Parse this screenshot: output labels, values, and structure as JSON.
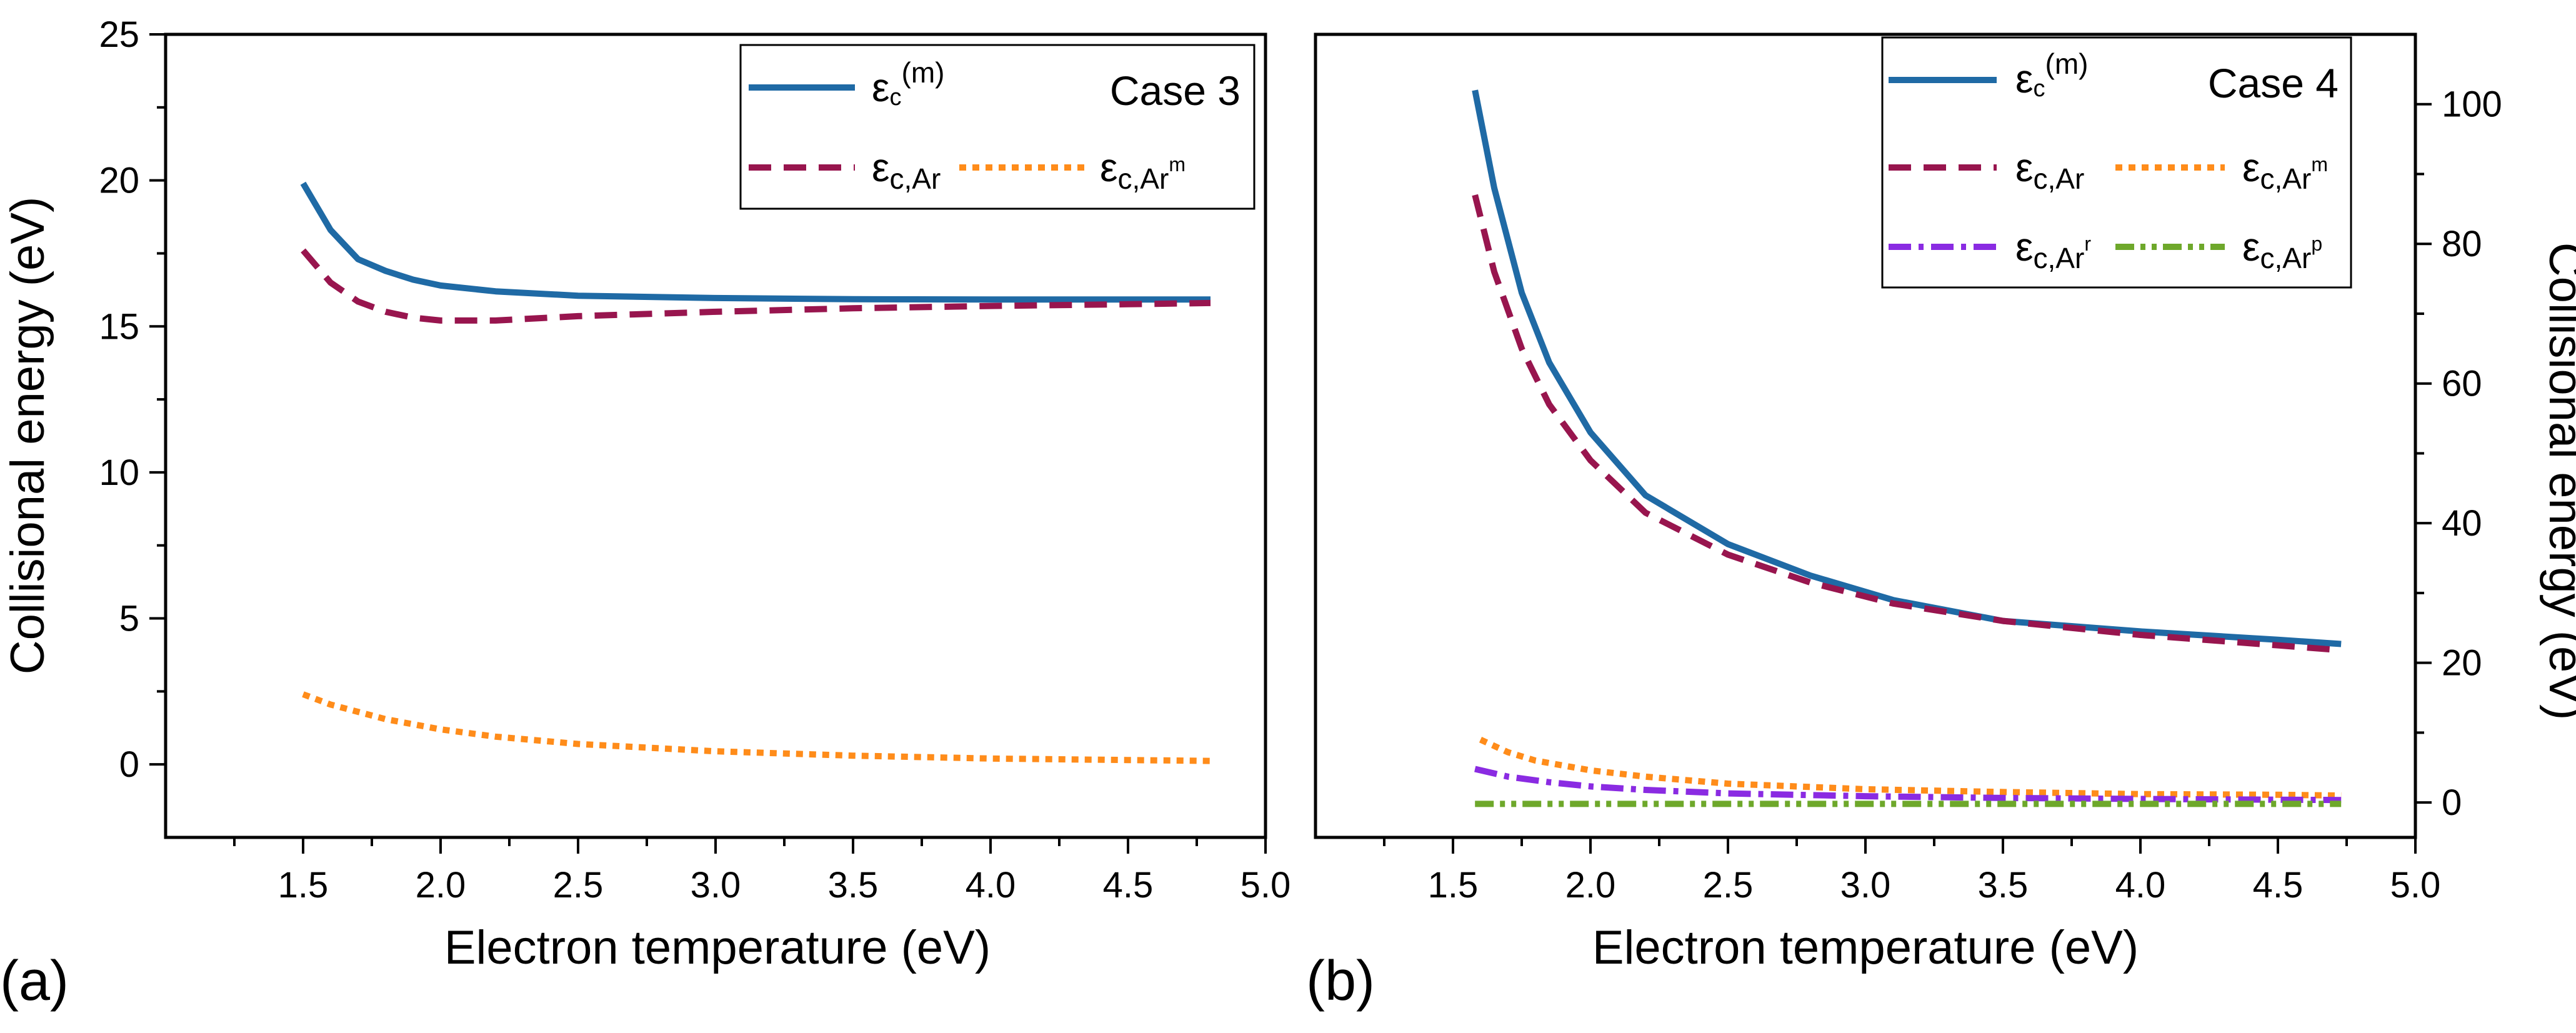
{
  "colors": {
    "blue": "#1f6aa5",
    "crimson": "#98154e",
    "orange": "#ff8c1a",
    "violet": "#8a2be2",
    "green": "#6ea82b"
  },
  "chart_data": [
    {
      "type": "line",
      "panel_label": "(a)",
      "case_label": "Case 3",
      "xlabel": "Electron temperature (eV)",
      "ylabel": "Collisional energy (eV)",
      "y_axis_side": "left",
      "xlim": [
        1.0,
        5.0
      ],
      "ylim": [
        -2.5,
        25
      ],
      "xticks": [
        1.5,
        2.0,
        2.5,
        3.0,
        3.5,
        4.0,
        4.5,
        5.0
      ],
      "xtick_labels": [
        "1.5",
        "2.0",
        "2.5",
        "3.0",
        "3.5",
        "4.0",
        "4.5",
        "5.0"
      ],
      "yticks": [
        0,
        5,
        10,
        15,
        20,
        25
      ],
      "ytick_labels": [
        "0",
        "5",
        "10",
        "15",
        "20",
        "25"
      ],
      "legend_position": "top-right",
      "series": [
        {
          "key": "eps_m",
          "name": "εc(m)",
          "label_main": "ε",
          "label_sub": "c",
          "label_sup": "(m)",
          "dash": "solid",
          "color_key": "blue",
          "x": [
            1.5,
            1.6,
            1.7,
            1.8,
            1.9,
            2.0,
            2.2,
            2.5,
            3.0,
            3.5,
            4.0,
            4.5,
            4.8
          ],
          "y": [
            19.9,
            18.3,
            17.3,
            16.9,
            16.6,
            16.4,
            16.2,
            16.05,
            15.97,
            15.93,
            15.92,
            15.92,
            15.92
          ]
        },
        {
          "key": "eps_ar",
          "name": "εc,Ar",
          "label_main": "ε",
          "label_sub": "c,Ar",
          "label_sup": "",
          "dash": "dash",
          "color_key": "crimson",
          "x": [
            1.5,
            1.6,
            1.7,
            1.8,
            1.9,
            2.0,
            2.2,
            2.5,
            3.0,
            3.5,
            4.0,
            4.5,
            4.8
          ],
          "y": [
            17.6,
            16.5,
            15.85,
            15.5,
            15.3,
            15.2,
            15.2,
            15.35,
            15.5,
            15.62,
            15.7,
            15.76,
            15.8
          ]
        },
        {
          "key": "eps_arm",
          "name": "εc,Arm",
          "label_main": "ε",
          "label_sub": "c,Ar",
          "label_sup": "m",
          "dash": "dot",
          "color_key": "orange",
          "x": [
            1.5,
            1.6,
            1.8,
            2.0,
            2.2,
            2.5,
            3.0,
            3.5,
            4.0,
            4.5,
            4.8
          ],
          "y": [
            2.4,
            2.05,
            1.55,
            1.2,
            0.95,
            0.7,
            0.45,
            0.3,
            0.2,
            0.15,
            0.12
          ]
        }
      ]
    },
    {
      "type": "line",
      "panel_label": "(b)",
      "case_label": "Case 4",
      "xlabel": "Electron temperature (eV)",
      "ylabel": "Collisional energy (eV)",
      "y_axis_side": "right",
      "xlim": [
        1.0,
        5.0
      ],
      "ylim": [
        -5,
        110
      ],
      "xticks": [
        1.5,
        2.0,
        2.5,
        3.0,
        3.5,
        4.0,
        4.5,
        5.0
      ],
      "xtick_labels": [
        "1.5",
        "2.0",
        "2.5",
        "3.0",
        "3.5",
        "4.0",
        "4.5",
        "5.0"
      ],
      "yticks": [
        0,
        20,
        40,
        60,
        80,
        100
      ],
      "ytick_labels": [
        "0",
        "20",
        "40",
        "60",
        "80",
        "100"
      ],
      "legend_position": "top-right",
      "series": [
        {
          "key": "eps_m",
          "name": "εc(m)",
          "label_main": "ε",
          "label_sub": "c",
          "label_sup": "(m)",
          "dash": "solid",
          "color_key": "blue",
          "x": [
            1.58,
            1.65,
            1.75,
            1.85,
            2.0,
            2.2,
            2.5,
            2.8,
            3.1,
            3.5,
            4.0,
            4.5,
            4.73
          ],
          "y": [
            102,
            88,
            73,
            63,
            53,
            44,
            37,
            32.5,
            29,
            26,
            24.5,
            23.3,
            22.7
          ]
        },
        {
          "key": "eps_ar",
          "name": "εc,Ar",
          "label_main": "ε",
          "label_sub": "c,Ar",
          "label_sup": "",
          "dash": "dash",
          "color_key": "crimson",
          "x": [
            1.58,
            1.65,
            1.75,
            1.85,
            2.0,
            2.2,
            2.5,
            2.8,
            3.1,
            3.5,
            4.0,
            4.5,
            4.73
          ],
          "y": [
            87,
            76,
            65,
            57,
            49,
            41.5,
            35.5,
            31.5,
            28.5,
            26,
            24,
            22.5,
            21.8
          ]
        },
        {
          "key": "eps_arm",
          "name": "εc,Arm",
          "label_main": "ε",
          "label_sub": "c,Ar",
          "label_sup": "m",
          "dash": "dot",
          "color_key": "orange",
          "x": [
            1.6,
            1.7,
            1.8,
            2.0,
            2.2,
            2.5,
            3.0,
            3.5,
            4.0,
            4.5,
            4.73
          ],
          "y": [
            9.0,
            7.2,
            6.0,
            4.6,
            3.7,
            2.7,
            1.9,
            1.5,
            1.2,
            1.1,
            1.0
          ]
        },
        {
          "key": "eps_arr",
          "name": "εc,Arr",
          "label_main": "ε",
          "label_sub": "c,Ar",
          "label_sup": "r",
          "dash": "dashdot",
          "color_key": "violet",
          "x": [
            1.58,
            1.7,
            1.85,
            2.0,
            2.2,
            2.5,
            3.0,
            3.5,
            4.0,
            4.5,
            4.73
          ],
          "y": [
            4.8,
            3.7,
            2.9,
            2.3,
            1.8,
            1.3,
            0.9,
            0.65,
            0.5,
            0.4,
            0.35
          ]
        },
        {
          "key": "eps_arp",
          "name": "εc,Arp",
          "label_main": "ε",
          "label_sub": "c,Ar",
          "label_sup": "p",
          "dash": "dashdotdot",
          "color_key": "green",
          "x": [
            1.58,
            2.0,
            2.5,
            3.0,
            3.5,
            4.0,
            4.5,
            4.73
          ],
          "y": [
            -0.2,
            -0.2,
            -0.2,
            -0.2,
            -0.2,
            -0.2,
            -0.2,
            -0.2
          ]
        }
      ]
    }
  ]
}
